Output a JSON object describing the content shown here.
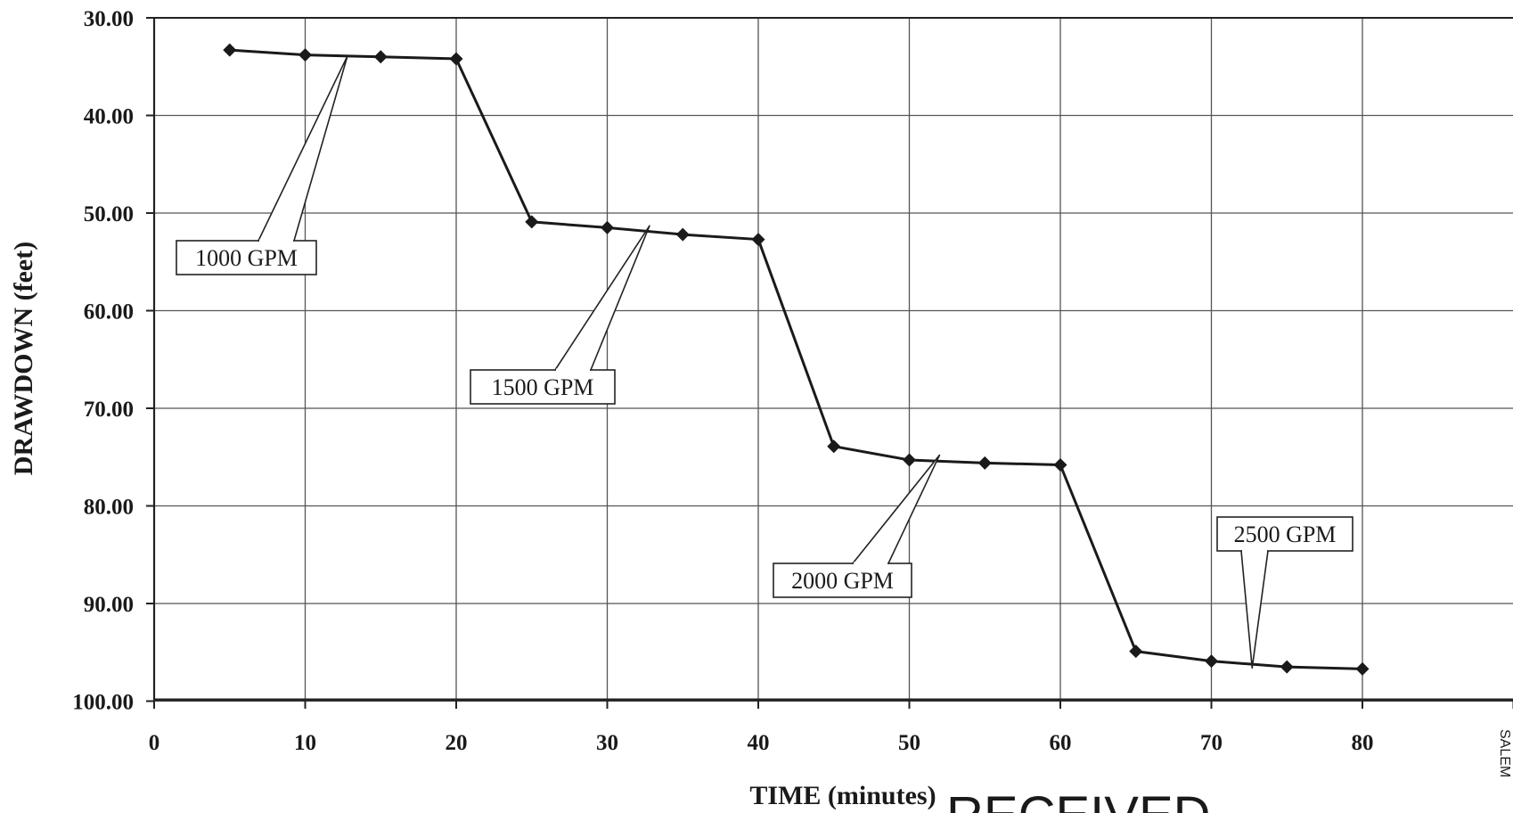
{
  "chart_data": {
    "type": "line",
    "title": "",
    "xlabel": "TIME (minutes)",
    "ylabel": "DRAWDOWN (feet)",
    "xlim": [
      0,
      90
    ],
    "ylim": [
      30,
      100
    ],
    "y_inverted": true,
    "grid": true,
    "x_tick_values": [
      0,
      10,
      20,
      30,
      40,
      50,
      60,
      70,
      80
    ],
    "x_tick_labels": [
      "0",
      "10",
      "20",
      "30",
      "40",
      "50",
      "60",
      "70",
      "80"
    ],
    "y_tick_values": [
      30,
      40,
      50,
      60,
      70,
      80,
      90,
      100
    ],
    "y_tick_labels": [
      "30.00",
      "40.00",
      "50.00",
      "60.00",
      "70.00",
      "80.00",
      "90.00",
      "100.00"
    ],
    "series": [
      {
        "x": [
          5,
          10,
          15,
          20,
          25,
          30,
          35,
          40,
          45,
          50,
          55,
          60,
          65,
          70,
          75,
          80
        ],
        "y": [
          33.3,
          33.8,
          34.0,
          34.2,
          50.9,
          51.5,
          52.2,
          52.7,
          73.9,
          75.3,
          75.6,
          75.8,
          94.9,
          95.9,
          96.5,
          96.7
        ],
        "marker": "diamond",
        "color": "#1a1a1a"
      }
    ],
    "annotations": [
      {
        "text": "1000 GPM",
        "points_to": [
          12.8,
          33.9
        ]
      },
      {
        "text": "1500 GPM",
        "points_to": [
          32.8,
          51.3
        ]
      },
      {
        "text": "2000 GPM",
        "points_to": [
          52.0,
          74.8
        ]
      },
      {
        "text": "2500 GPM",
        "points_to": [
          72.7,
          96.6
        ]
      }
    ]
  },
  "stamp_text": "RECEIVED",
  "side_stamp_text": "SALEM"
}
